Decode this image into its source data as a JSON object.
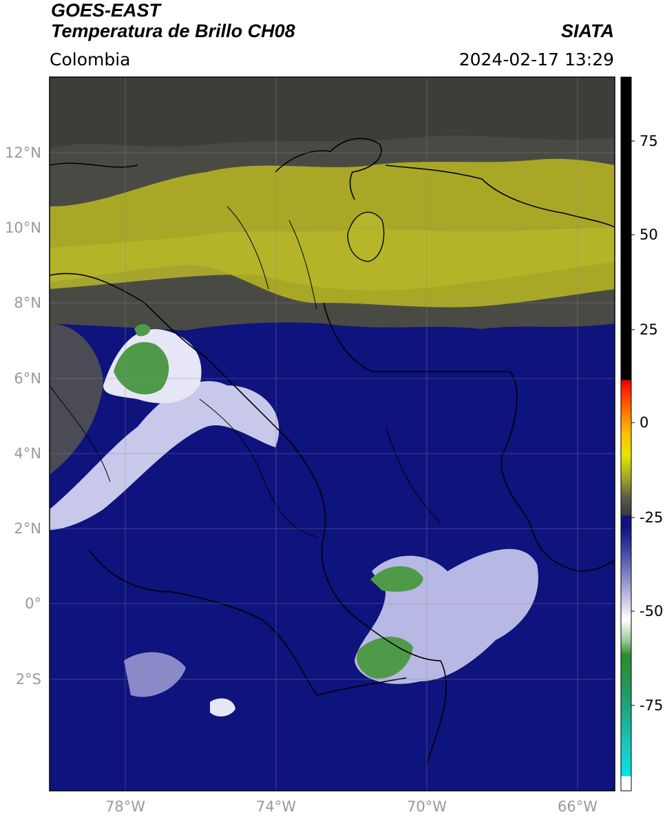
{
  "header": {
    "satellite": "GOES-EAST",
    "product": "Temperatura de Brillo CH08",
    "region": "Colombia",
    "organization": "SIATA",
    "datetime": "2024-02-17 13:29"
  },
  "map": {
    "lat_range": [
      -4.0,
      14.0
    ],
    "lon_range": [
      -80.0,
      -65.0
    ],
    "lat_ticks": [
      {
        "value": 12,
        "label": "12°N"
      },
      {
        "value": 10,
        "label": "10°N"
      },
      {
        "value": 8,
        "label": "8°N"
      },
      {
        "value": 6,
        "label": "6°N"
      },
      {
        "value": 4,
        "label": "4°N"
      },
      {
        "value": 2,
        "label": "2°N"
      },
      {
        "value": 0,
        "label": "0°"
      },
      {
        "value": -2,
        "label": "2°S"
      }
    ],
    "lon_ticks": [
      {
        "value": -78,
        "label": "78°W"
      },
      {
        "value": -74,
        "label": "74°W"
      },
      {
        "value": -70,
        "label": "70°W"
      },
      {
        "value": -66,
        "label": "66°W"
      }
    ],
    "grid": true
  },
  "colorbar": {
    "range": [
      -95,
      90
    ],
    "ticks": [
      {
        "value": 75,
        "label": "75"
      },
      {
        "value": 50,
        "label": "50"
      },
      {
        "value": 25,
        "label": "25"
      },
      {
        "value": 0,
        "label": "0"
      },
      {
        "value": -25,
        "label": "-25"
      },
      {
        "value": -50,
        "label": "-50"
      },
      {
        "value": -75,
        "label": "-75"
      }
    ],
    "colors": {
      "warm_clear": "#000000",
      "dry_upper": "#4a4a45",
      "moist_yellow": "#a8a826",
      "cold_navy": "#0e137e",
      "cold_white": "#ffffff",
      "coldest_green": "#2f8a2a",
      "extreme_cyan": "#19d7d7"
    }
  }
}
